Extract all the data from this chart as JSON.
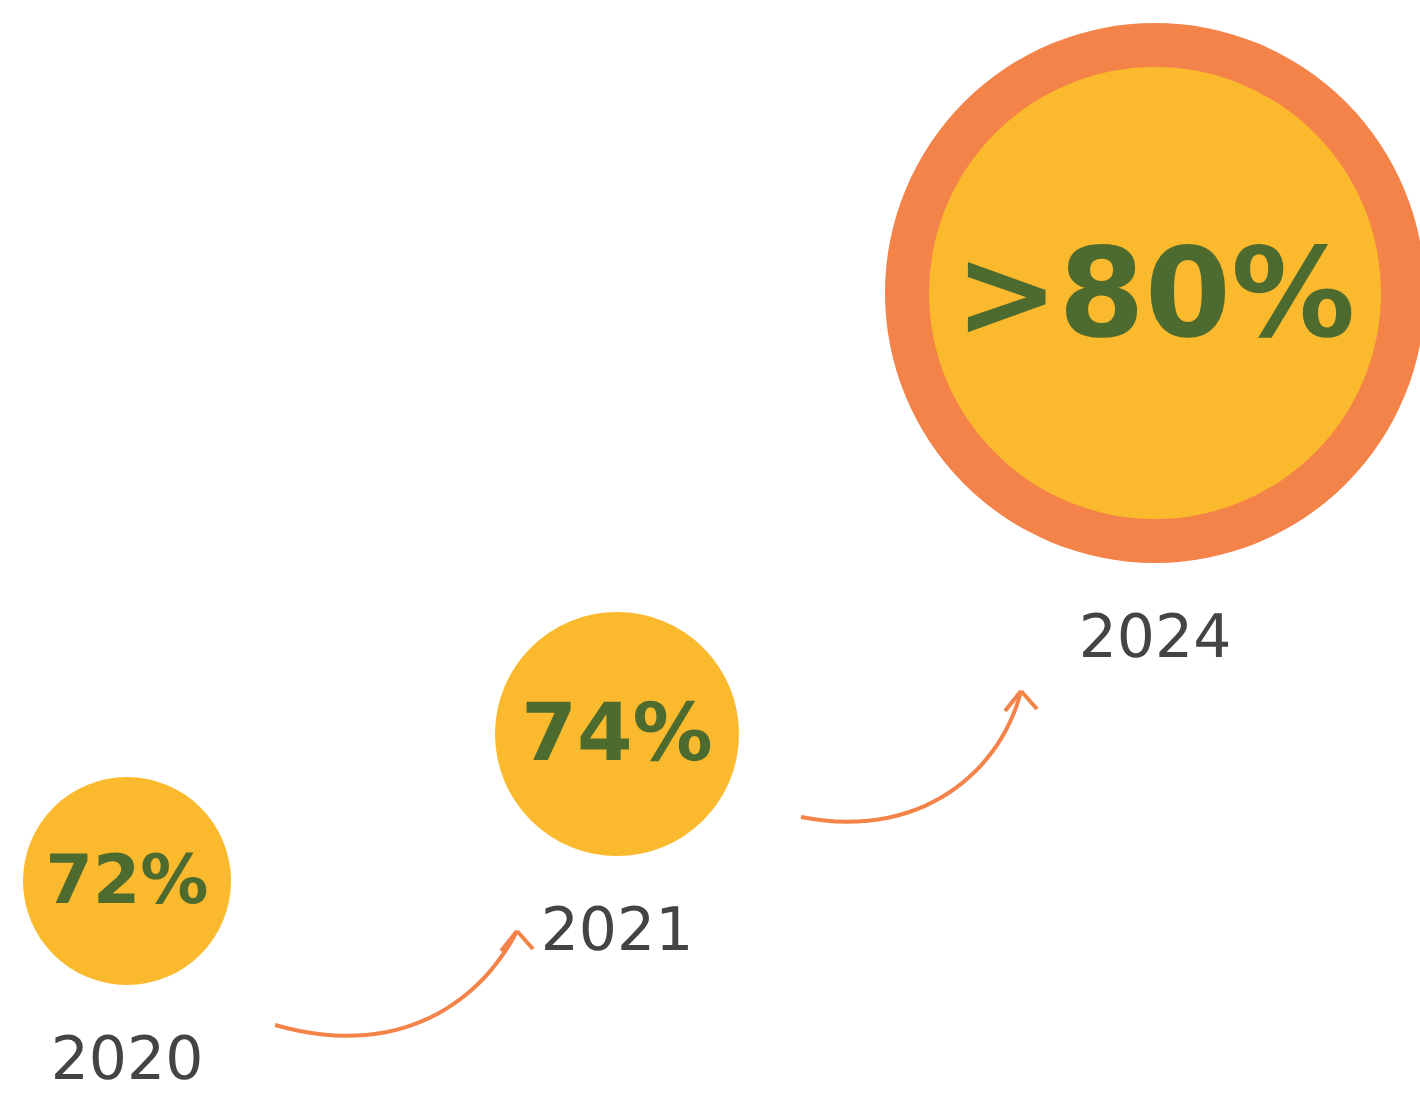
{
  "chart_data": {
    "type": "other",
    "categories": [
      "2020",
      "2021",
      "2024"
    ],
    "values": [
      72,
      74,
      80
    ],
    "value_labels": [
      "72%",
      "74%",
      ">80%"
    ],
    "colors": [
      "#fbb92e",
      "#fbb92e",
      "#fbb92e"
    ]
  }
}
